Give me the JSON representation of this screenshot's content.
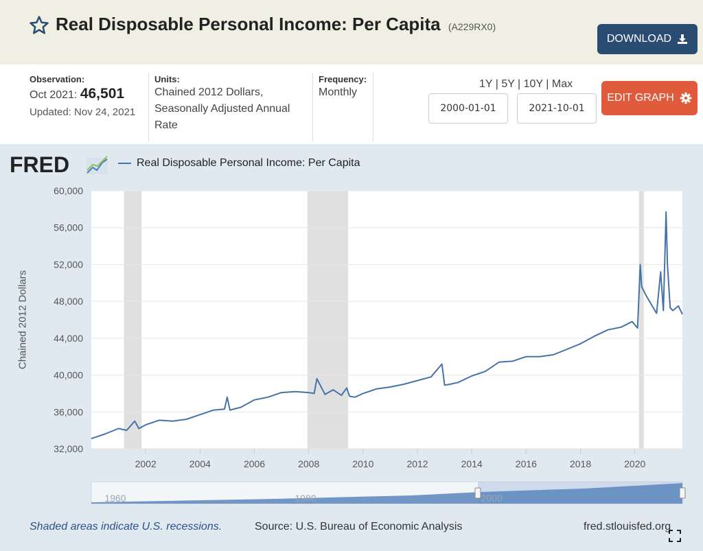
{
  "header": {
    "title": "Real Disposable Personal Income: Per Capita",
    "series_id": "(A229RX0)",
    "download_label": "DOWNLOAD",
    "star_icon": "star-outline-icon",
    "download_icon": "download-icon"
  },
  "info": {
    "observation_label": "Observation:",
    "observation_date": "Oct 2021:",
    "observation_value": "46,501",
    "updated": "Updated: Nov 24, 2021",
    "units_label": "Units:",
    "units_line1": "Chained 2012 Dollars,",
    "units_line2": "Seasonally Adjusted Annual",
    "units_line3": "Rate",
    "frequency_label": "Frequency:",
    "frequency_value": "Monthly",
    "range_links": "1Y | 5Y | 10Y | Max",
    "start_date": "2000-01-01",
    "end_date": "2021-10-01",
    "edit_label": "EDIT GRAPH",
    "gear_icon": "gear-icon"
  },
  "colors": {
    "accent": "#2a4b72",
    "edit": "#e05a3c",
    "line": "#4572a7",
    "recession": "#e0e0e0"
  },
  "footer": {
    "recession_note": "Shaded areas indicate U.S. recessions.",
    "source": "Source: U.S. Bureau of Economic Analysis",
    "site": "fred.stlouisfed.org"
  },
  "chart_data": {
    "type": "line",
    "logo": "FRED",
    "series": [
      {
        "name": "Real Disposable Personal Income: Per Capita",
        "x": [
          2000.0,
          2000.5,
          2001.0,
          2001.3,
          2001.6,
          2001.75,
          2002.0,
          2002.5,
          2003.0,
          2003.5,
          2004.0,
          2004.5,
          2004.9,
          2005.0,
          2005.1,
          2005.5,
          2006.0,
          2006.5,
          2007.0,
          2007.5,
          2008.0,
          2008.2,
          2008.3,
          2008.6,
          2008.9,
          2009.2,
          2009.4,
          2009.5,
          2009.7,
          2010.0,
          2010.5,
          2011.0,
          2011.5,
          2012.0,
          2012.5,
          2012.9,
          2013.0,
          2013.2,
          2013.5,
          2014.0,
          2014.5,
          2015.0,
          2015.5,
          2016.0,
          2016.5,
          2017.0,
          2017.5,
          2018.0,
          2018.5,
          2019.0,
          2019.5,
          2019.9,
          2020.1,
          2020.2,
          2020.25,
          2020.4,
          2020.6,
          2020.8,
          2020.95,
          2021.05,
          2021.15,
          2021.2,
          2021.3,
          2021.4,
          2021.6,
          2021.75
        ],
        "values": [
          33100,
          33600,
          34200,
          34000,
          35000,
          34200,
          34600,
          35100,
          35000,
          35200,
          35700,
          36200,
          36300,
          37600,
          36200,
          36500,
          37300,
          37600,
          38100,
          38200,
          38100,
          38000,
          39600,
          37900,
          38400,
          37800,
          38600,
          37700,
          37600,
          38000,
          38500,
          38700,
          39000,
          39400,
          39800,
          41200,
          38900,
          39000,
          39200,
          39900,
          40400,
          41400,
          41500,
          42000,
          42000,
          42200,
          42800,
          43400,
          44200,
          44900,
          45200,
          45800,
          45100,
          52000,
          49600,
          48700,
          47700,
          46700,
          51200,
          47000,
          57700,
          52000,
          47300,
          47000,
          47500,
          46600
        ]
      }
    ],
    "ylabel": "Chained 2012 Dollars",
    "ylim": [
      32000,
      60000
    ],
    "y_ticks": [
      "32,000",
      "36,000",
      "40,000",
      "44,000",
      "48,000",
      "52,000",
      "56,000",
      "60,000"
    ],
    "xlim": [
      2000,
      2021.75
    ],
    "x_ticks": [
      "2002",
      "2004",
      "2006",
      "2008",
      "2010",
      "2012",
      "2014",
      "2016",
      "2018",
      "2020"
    ],
    "recessions": [
      [
        2001.2,
        2001.85
      ],
      [
        2007.95,
        2009.45
      ],
      [
        2020.15,
        2020.33
      ]
    ],
    "grid": true,
    "navigator": {
      "labels": [
        "1960",
        "1980",
        "2000"
      ]
    }
  }
}
